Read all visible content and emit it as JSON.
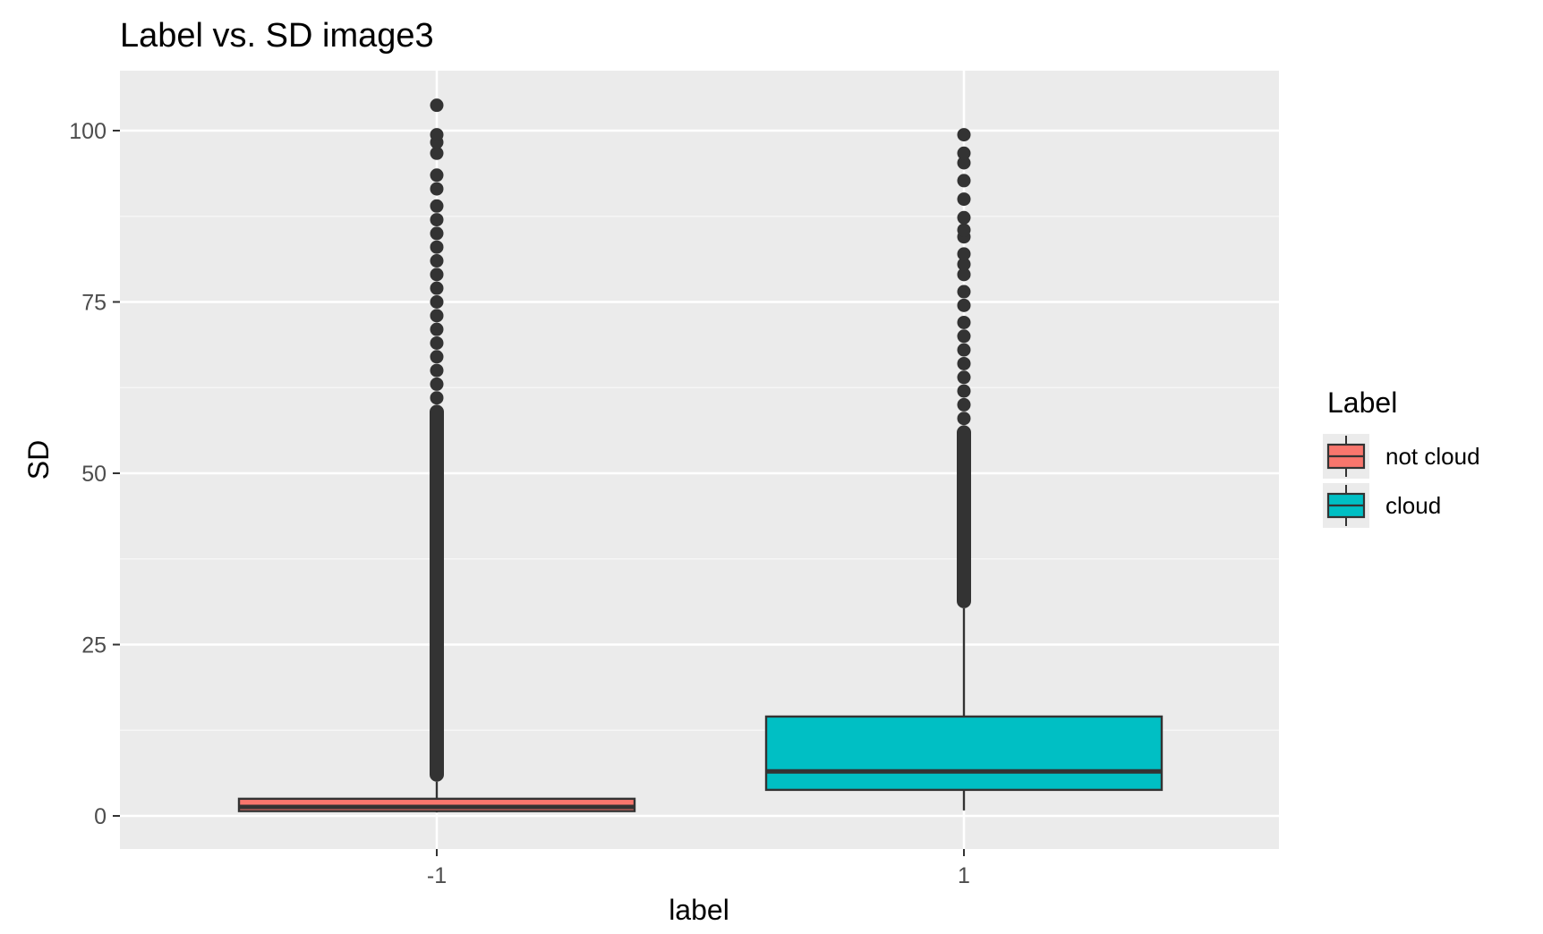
{
  "chart_data": {
    "type": "boxplot",
    "title": "Label vs. SD image3",
    "xlabel": "label",
    "ylabel": "SD",
    "categories": [
      "-1",
      "1"
    ],
    "ylim": [
      -5,
      108
    ],
    "yticks": [
      0,
      25,
      50,
      75,
      100
    ],
    "grid": true,
    "legend": {
      "title": "Label",
      "position": "right",
      "entries": [
        {
          "label": "not cloud",
          "color": "#F8766D"
        },
        {
          "label": "cloud",
          "color": "#00BFC4"
        }
      ]
    },
    "series": [
      {
        "category": "-1",
        "legend": "not cloud",
        "color": "#F8766D",
        "min": 0.5,
        "q1": 0.7,
        "median": 1.3,
        "q3": 2.5,
        "whisker_high": 5.0,
        "outlier_range": [
          5.0,
          60
        ],
        "outliers_sparse": [
          61,
          63,
          65,
          67,
          69,
          71,
          73,
          75,
          77,
          79,
          81,
          83,
          85,
          87,
          89,
          91.5,
          93.5,
          96.7,
          98.3,
          99.4,
          103.7
        ]
      },
      {
        "category": "1",
        "legend": "cloud",
        "color": "#00BFC4",
        "min": 0.8,
        "q1": 3.8,
        "median": 6.5,
        "q3": 14.5,
        "whisker_high": 30.3,
        "outlier_range": [
          30.3,
          57
        ],
        "outliers_sparse": [
          58,
          60,
          62,
          64,
          66,
          68,
          70,
          72,
          74.5,
          76.5,
          79,
          80.5,
          82,
          84.5,
          85.5,
          87.3,
          90,
          92.7,
          95.3,
          96.7,
          99.4
        ]
      }
    ]
  }
}
